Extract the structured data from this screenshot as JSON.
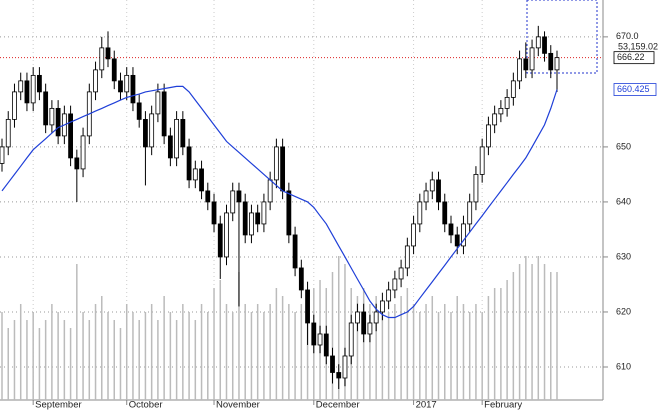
{
  "chart_data": {
    "type": "candlestick",
    "categories": [
      null,
      null,
      null,
      null,
      null,
      "September",
      null,
      null,
      null,
      null,
      null,
      null,
      null,
      null,
      null,
      null,
      null,
      null,
      null,
      null,
      "October",
      null,
      null,
      null,
      null,
      null,
      null,
      null,
      null,
      null,
      null,
      null,
      null,
      null,
      "November",
      null,
      null,
      null,
      null,
      null,
      null,
      null,
      null,
      null,
      null,
      null,
      null,
      null,
      null,
      null,
      "December",
      null,
      null,
      null,
      null,
      null,
      null,
      null,
      null,
      null,
      null,
      null,
      null,
      null,
      null,
      null,
      "2017",
      null,
      null,
      null,
      null,
      null,
      null,
      null,
      null,
      null,
      null,
      "February",
      null,
      null,
      null,
      null,
      null,
      null,
      null,
      null,
      null,
      null,
      null,
      null
    ],
    "open": [
      647,
      650,
      655,
      660,
      662,
      658,
      663,
      660,
      654,
      657,
      652,
      656,
      648,
      646,
      652,
      660,
      664,
      668,
      666,
      662,
      660,
      663,
      658,
      655,
      650,
      656,
      660,
      652,
      648,
      655,
      650,
      644,
      646,
      642,
      640,
      636,
      630,
      638,
      642,
      640,
      634,
      638,
      636,
      640,
      644,
      650,
      642,
      634,
      628,
      624,
      618,
      614,
      616,
      612,
      609,
      608,
      612,
      618,
      620,
      616,
      618,
      620,
      622,
      624,
      626,
      628,
      632,
      636,
      640,
      642,
      644,
      640,
      636,
      634,
      632,
      636,
      640,
      645,
      650,
      654,
      656,
      657,
      659,
      662,
      666,
      664,
      668,
      670,
      667,
      664
    ],
    "high": [
      651.5,
      656.5,
      661.5,
      663.5,
      663.5,
      664.5,
      664.5,
      661.5,
      658.5,
      658.5,
      657.5,
      657.5,
      649.5,
      653.5,
      661.5,
      665.5,
      670,
      671,
      667.5,
      663.5,
      664.5,
      664.5,
      659.5,
      656.5,
      657.5,
      661.5,
      661.5,
      653.5,
      656.5,
      656.5,
      651.5,
      647.5,
      647.5,
      643.5,
      641.5,
      637.5,
      639.5,
      643.5,
      643.5,
      641.5,
      639.5,
      639.5,
      641.5,
      645.5,
      651.5,
      651.5,
      643.5,
      635.5,
      629.5,
      625.5,
      619.5,
      617.5,
      617.5,
      613.5,
      610.5,
      613.5,
      619.5,
      621.5,
      621.5,
      619.5,
      621.5,
      623.5,
      625.5,
      627.5,
      629.5,
      633.5,
      637.5,
      641.5,
      643.5,
      645.5,
      645.5,
      641.5,
      637.5,
      635.5,
      637.5,
      641.5,
      646.5,
      651.5,
      655.5,
      657.5,
      658.5,
      660.5,
      663.5,
      667.5,
      669,
      669.5,
      672,
      671,
      668.5,
      667.5
    ],
    "low": [
      645.5,
      648.5,
      653.5,
      658.5,
      656.5,
      656.5,
      658.5,
      652.5,
      652.5,
      650.5,
      650.5,
      646.5,
      640,
      644.5,
      650.5,
      658.5,
      662.5,
      664.5,
      660.5,
      658.5,
      658.5,
      656.5,
      653.5,
      643,
      648.5,
      654.5,
      650.5,
      646.5,
      646.5,
      648.5,
      642.5,
      642.5,
      640.5,
      638.5,
      634.5,
      626,
      628.5,
      636.5,
      621,
      632.5,
      632.5,
      634.5,
      634.5,
      638.5,
      642.5,
      640.5,
      632.5,
      626.5,
      622.5,
      614,
      612.5,
      612.5,
      610.5,
      607,
      606,
      606.5,
      610.5,
      616.5,
      614.5,
      614.5,
      616.5,
      618.5,
      620.5,
      622.5,
      624.5,
      626.5,
      630.5,
      634.5,
      638.5,
      640.5,
      638.5,
      634.5,
      632.5,
      630.5,
      630.5,
      634.5,
      638.5,
      643.5,
      648.5,
      652.5,
      654.5,
      655.5,
      657.5,
      660.5,
      662.5,
      662.5,
      666.5,
      665.5,
      662.5,
      660
    ],
    "close": [
      650,
      655,
      660,
      662,
      658,
      663,
      660,
      654,
      657,
      652,
      656,
      648,
      646,
      652,
      660,
      664,
      668,
      666,
      662,
      660,
      663,
      658,
      655,
      650,
      656,
      660,
      652,
      648,
      655,
      650,
      644,
      646,
      642,
      640,
      636,
      630,
      638,
      642,
      640,
      634,
      638,
      636,
      640,
      644,
      650,
      642,
      634,
      628,
      624,
      618,
      614,
      616,
      612,
      609,
      608,
      612,
      618,
      620,
      616,
      618,
      620,
      622,
      624,
      626,
      628,
      632,
      636,
      640,
      642,
      644,
      640,
      636,
      634,
      632,
      636,
      640,
      645,
      650,
      654,
      656,
      657,
      659,
      662,
      666,
      664,
      668,
      670,
      667,
      664,
      666.22
    ],
    "ma": [
      642,
      643.5,
      645,
      646.5,
      648,
      649.5,
      650.5,
      651.5,
      652.5,
      653.5,
      654,
      654.5,
      655,
      655.5,
      656,
      656.5,
      657,
      657.5,
      658,
      658.5,
      659,
      659.3,
      659.6,
      660,
      660.2,
      660.4,
      660.6,
      660.8,
      661,
      661,
      660,
      658.5,
      657,
      655.5,
      654,
      652.5,
      651,
      650,
      649,
      648,
      647,
      646,
      645,
      644,
      643,
      642,
      641.5,
      641,
      640.5,
      640,
      639,
      637.5,
      636,
      634,
      632,
      630,
      628,
      626,
      624,
      622,
      620.5,
      619.5,
      619,
      619,
      619.5,
      620,
      621,
      622.5,
      624,
      625.5,
      627,
      628.5,
      630,
      631.5,
      633,
      634.5,
      636,
      637.5,
      639,
      640.5,
      642,
      643.5,
      645,
      646.5,
      648,
      650,
      652,
      654,
      657,
      660.425
    ],
    "ma_color": "#1f3fd8",
    "volume": [
      55,
      45,
      50,
      60,
      50,
      55,
      45,
      50,
      60,
      55,
      50,
      45,
      85,
      55,
      50,
      60,
      65,
      55,
      50,
      45,
      60,
      55,
      50,
      55,
      60,
      50,
      65,
      55,
      50,
      60,
      55,
      50,
      60,
      55,
      70,
      75,
      60,
      55,
      80,
      60,
      55,
      60,
      55,
      60,
      70,
      65,
      60,
      55,
      60,
      65,
      70,
      75,
      70,
      80,
      90,
      85,
      70,
      65,
      70,
      60,
      65,
      60,
      55,
      60,
      65,
      70,
      60,
      55,
      60,
      65,
      55,
      60,
      55,
      65,
      60,
      55,
      60,
      55,
      65,
      70,
      70,
      75,
      80,
      85,
      90,
      85,
      90,
      85,
      80,
      80
    ],
    "volume_color": "#bbbbbb",
    "volume_label": "53,159.02",
    "y2lim": [
      0,
      250
    ],
    "ylim": [
      604,
      676.7
    ],
    "yticks": [
      610,
      620,
      630,
      640,
      650,
      {
        "value": 670,
        "label": "670.0"
      }
    ],
    "grid": true
  }
}
